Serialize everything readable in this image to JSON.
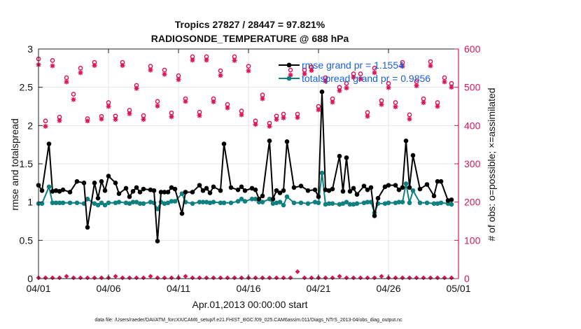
{
  "colors": {
    "rmse": "#000000",
    "spread": "#0e8080",
    "obs": "#d6175c",
    "legend_text": "#1a5fe0",
    "grid": "#e6e6e6"
  },
  "footer": "data file: /Users/raeder/DAI/ATM_forcXX/CAM6_setup/f.e21.FHIST_BGC.f09_025.CAM6assim.011/Diags_NTrS_2013-04/obs_diag_output.nc",
  "chart_data": {
    "type": "line",
    "title": "Tropics 27827 / 28447 = 97.821%",
    "subtitle": "RADIOSONDE_TEMPERATURE @ 688 hPa",
    "xlabel": "Apr.01,2013 00:00:00 start",
    "ylabel": "rmse and totalspread",
    "y2label": "# of obs: o=possible; ×=assimilated",
    "xlim": [
      0,
      30
    ],
    "ylim": [
      0,
      3
    ],
    "y2lim": [
      0,
      600
    ],
    "xticks": [
      0,
      5,
      10,
      15,
      20,
      25,
      30
    ],
    "xtick_labels": [
      "04/01",
      "04/06",
      "04/11",
      "04/16",
      "04/21",
      "04/26",
      "05/01"
    ],
    "yticks": [
      0,
      0.5,
      1,
      1.5,
      2,
      2.5,
      3
    ],
    "ytick_labels": [
      "0",
      "0.5",
      "1",
      "1.5",
      "2",
      "2.5",
      "3"
    ],
    "y2ticks": [
      0,
      100,
      200,
      300,
      400,
      500,
      600
    ],
    "y2tick_labels": [
      "0",
      "100",
      "200",
      "300",
      "400",
      "500",
      "600"
    ],
    "grid": true,
    "legend": {
      "placement": "top-right",
      "entries": [
        "rmse grand pr = 1.1554",
        "totalspread grand pr = 0.9856"
      ]
    },
    "series": [
      {
        "name": "rmse",
        "axis": "left",
        "x": [
          0.0,
          0.25,
          0.75,
          1.0,
          1.25,
          1.5,
          1.75,
          2.25,
          2.75,
          3.25,
          3.5,
          4.0,
          4.25,
          4.5,
          4.75,
          5.0,
          5.5,
          5.75,
          6.25,
          6.5,
          6.75,
          7.0,
          7.25,
          7.5,
          8.0,
          8.25,
          8.5,
          8.75,
          9.0,
          9.25,
          9.5,
          9.75,
          10.25,
          10.5,
          11.0,
          11.5,
          11.75,
          12.0,
          12.25,
          12.5,
          13.0,
          13.25,
          13.75,
          14.25,
          14.5,
          14.75,
          15.25,
          15.5,
          15.75,
          16.0,
          16.5,
          16.75,
          17.0,
          17.25,
          17.5,
          17.75,
          18.25,
          18.75,
          19.25,
          19.75,
          20.0,
          20.25,
          20.5,
          20.75,
          21.0,
          21.5,
          21.75,
          22.0,
          22.25,
          22.5,
          22.75,
          23.25,
          23.5,
          23.75,
          24.0,
          24.25,
          24.75,
          25.0,
          25.5,
          25.75,
          26.0,
          26.25,
          26.5,
          26.75,
          27.25,
          27.75,
          28.25,
          28.5,
          28.75,
          29.25,
          29.5
        ],
        "values": [
          1.22,
          1.15,
          1.76,
          1.14,
          1.15,
          1.14,
          1.16,
          1.13,
          1.27,
          1.25,
          0.67,
          1.25,
          1.05,
          1.27,
          1.15,
          1.34,
          1.25,
          1.11,
          1.18,
          1.07,
          1.14,
          1.19,
          1.13,
          1.17,
          1.16,
          1.15,
          0.49,
          1.13,
          1.13,
          1.13,
          1.19,
          1.17,
          0.85,
          1.13,
          1.13,
          1.22,
          1.15,
          1.18,
          1.12,
          1.2,
          1.15,
          1.76,
          1.19,
          1.16,
          1.2,
          1.15,
          1.18,
          1.16,
          1.04,
          1.08,
          1.8,
          1.04,
          1.15,
          1.12,
          1.15,
          1.79,
          1.19,
          1.21,
          1.15,
          1.16,
          1.07,
          2.44,
          1.16,
          1.15,
          1.17,
          1.6,
          1.14,
          1.58,
          1.14,
          1.18,
          1.1,
          1.21,
          1.16,
          1.19,
          0.82,
          1.05,
          1.2,
          1.22,
          1.22,
          1.16,
          1.19,
          1.8,
          1.19,
          1.61,
          1.17,
          1.23,
          1.08,
          1.27,
          1.27,
          1.02,
          1.03
        ]
      },
      {
        "name": "totalspread",
        "axis": "left",
        "x": [
          0.0,
          0.25,
          0.75,
          1.0,
          1.25,
          1.5,
          1.75,
          2.25,
          2.75,
          3.25,
          3.5,
          4.0,
          4.25,
          4.5,
          4.75,
          5.0,
          5.5,
          5.75,
          6.25,
          6.5,
          6.75,
          7.0,
          7.25,
          7.5,
          8.0,
          8.25,
          8.5,
          8.75,
          9.0,
          9.25,
          9.5,
          9.75,
          10.25,
          10.5,
          11.0,
          11.5,
          11.75,
          12.0,
          12.25,
          12.5,
          13.0,
          13.25,
          13.75,
          14.25,
          14.5,
          14.75,
          15.25,
          15.5,
          15.75,
          16.0,
          16.5,
          16.75,
          17.0,
          17.25,
          17.5,
          17.75,
          18.25,
          18.75,
          19.25,
          19.75,
          20.0,
          20.25,
          20.5,
          20.75,
          21.0,
          21.5,
          21.75,
          22.0,
          22.25,
          22.5,
          22.75,
          23.25,
          23.5,
          23.75,
          24.0,
          24.25,
          24.75,
          25.0,
          25.5,
          25.75,
          26.0,
          26.25,
          26.5,
          26.75,
          27.25,
          27.75,
          28.25,
          28.5,
          28.75,
          29.25,
          29.5
        ],
        "values": [
          0.98,
          0.98,
          1.2,
          0.99,
          0.99,
          0.99,
          0.99,
          0.99,
          0.99,
          0.98,
          1.04,
          0.98,
          0.96,
          0.99,
          0.96,
          0.99,
          0.99,
          1.0,
          0.99,
          0.98,
          1.0,
          1.0,
          0.98,
          0.98,
          1.0,
          0.99,
          0.91,
          1.0,
          0.98,
          0.99,
          1.01,
          1.01,
          1.11,
          1.0,
          0.98,
          1.0,
          1.0,
          1.0,
          0.99,
          1.0,
          0.99,
          0.99,
          0.99,
          1.01,
          1.04,
          1.01,
          1.04,
          1.04,
          1.0,
          1.0,
          1.04,
          0.98,
          0.99,
          1.0,
          0.96,
          1.07,
          0.99,
          0.99,
          0.98,
          1.0,
          0.99,
          1.38,
          0.97,
          0.98,
          0.98,
          0.97,
          0.98,
          1.0,
          0.97,
          0.97,
          0.98,
          0.99,
          1.0,
          1.0,
          0.86,
          0.98,
          0.98,
          0.99,
          0.99,
          1.0,
          1.0,
          1.24,
          0.99,
          1.15,
          0.99,
          0.99,
          0.98,
          0.98,
          0.99,
          0.98,
          0.97
        ]
      },
      {
        "name": "# obs possible (o)",
        "axis": "right",
        "x": [
          0.0,
          0.5,
          1.0,
          1.5,
          2.0,
          2.5,
          3.0,
          3.5,
          4.0,
          4.5,
          5.0,
          5.5,
          6.0,
          6.5,
          7.0,
          7.5,
          8.0,
          8.5,
          9.0,
          9.5,
          10.0,
          10.5,
          11.0,
          11.5,
          12.0,
          12.5,
          13.0,
          13.5,
          14.0,
          14.5,
          15.0,
          15.5,
          16.0,
          16.5,
          17.0,
          17.5,
          18.0,
          18.5,
          19.0,
          19.5,
          20.0,
          20.5,
          21.0,
          21.5,
          22.0,
          22.5,
          23.0,
          23.5,
          24.0,
          24.5,
          25.0,
          25.5,
          26.0,
          26.5,
          27.0,
          27.5,
          28.0,
          28.5,
          29.0,
          29.5
        ],
        "values": [
          574,
          412,
          570,
          422,
          525,
          482,
          550,
          418,
          565,
          424,
          460,
          425,
          565,
          440,
          505,
          426,
          555,
          463,
          545,
          433,
          530,
          470,
          580,
          435,
          580,
          470,
          543,
          455,
          580,
          438,
          555,
          412,
          480,
          406,
          425,
          430,
          545,
          430,
          545,
          553,
          450,
          525,
          470,
          500,
          510,
          535,
          535,
          434,
          550,
          465,
          510,
          460,
          565,
          428,
          515,
          470,
          567,
          460,
          525,
          510
        ]
      },
      {
        "name": "# obs assimilated (×)",
        "axis": "right",
        "x": [
          0.0,
          0.5,
          1.0,
          1.5,
          2.0,
          2.5,
          3.0,
          3.5,
          4.0,
          4.5,
          5.0,
          5.5,
          6.0,
          6.5,
          7.0,
          7.5,
          8.0,
          8.5,
          9.0,
          9.5,
          10.0,
          10.5,
          11.0,
          11.5,
          12.0,
          12.5,
          13.0,
          13.5,
          14.0,
          14.5,
          15.0,
          15.5,
          16.0,
          16.5,
          17.0,
          17.5,
          18.0,
          18.5,
          19.0,
          19.5,
          20.0,
          20.5,
          21.0,
          21.5,
          22.0,
          22.5,
          23.0,
          23.5,
          24.0,
          24.5,
          25.0,
          25.5,
          26.0,
          26.5,
          27.0,
          27.5,
          28.0,
          28.5,
          29.0,
          29.5
        ],
        "values": [
          559,
          398,
          556,
          413,
          514,
          468,
          538,
          412,
          557,
          417,
          450,
          416,
          557,
          431,
          497,
          416,
          545,
          451,
          534,
          423,
          520,
          463,
          571,
          426,
          571,
          462,
          531,
          446,
          570,
          428,
          543,
          403,
          470,
          398,
          416,
          420,
          532,
          421,
          535,
          544,
          441,
          516,
          461,
          491,
          498,
          526,
          522,
          424,
          538,
          455,
          499,
          449,
          555,
          417,
          504,
          460,
          556,
          450,
          514,
          500
        ]
      },
      {
        "name": "# obs possible (o) near zero",
        "axis": "right",
        "x": [
          0.0,
          0.5,
          1.0,
          1.5,
          2.0,
          2.5,
          3.0,
          3.5,
          4.0,
          4.5,
          5.0,
          5.5,
          6.0,
          6.5,
          7.0,
          7.5,
          8.0,
          8.5,
          9.0,
          9.5,
          10.0,
          10.5,
          11.0,
          11.5,
          12.0,
          12.5,
          13.0,
          13.5,
          14.0,
          14.5,
          15.0,
          15.5,
          16.0,
          16.5,
          17.0,
          17.5,
          18.0,
          18.5,
          19.0,
          19.5,
          20.0,
          20.5,
          21.0,
          21.5,
          22.0,
          22.5,
          23.0,
          23.5,
          24.0,
          24.5,
          25.0,
          25.5,
          26.0,
          26.5,
          27.0,
          27.5,
          28.0,
          28.5,
          29.0,
          29.5
        ],
        "values": [
          2,
          2,
          2,
          2,
          6,
          2,
          2,
          2,
          2,
          2,
          2,
          6,
          2,
          2,
          2,
          2,
          6,
          2,
          2,
          2,
          2,
          6,
          2,
          2,
          2,
          2,
          2,
          2,
          2,
          2,
          2,
          2,
          2,
          2,
          2,
          2,
          2,
          18,
          2,
          2,
          2,
          2,
          2,
          6,
          2,
          2,
          2,
          2,
          2,
          6,
          2,
          2,
          2,
          2,
          2,
          2,
          2,
          2,
          2,
          2
        ]
      }
    ]
  }
}
